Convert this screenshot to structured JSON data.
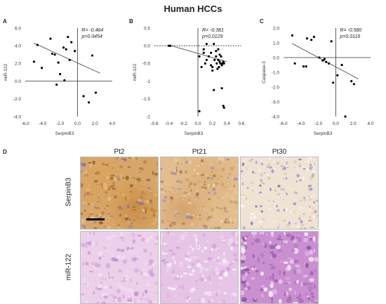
{
  "figure": {
    "title": "Human HCCs",
    "panel_letters": [
      "A",
      "B",
      "C",
      "D"
    ]
  },
  "colors": {
    "point": "#000000",
    "fit_line": "#555555",
    "axis": "#333333"
  },
  "chart_data": [
    {
      "type": "scatter",
      "panel": "A",
      "xlabel": "SerpinB3",
      "ylabel": "miR-122",
      "xlim": [
        -6.0,
        4.0
      ],
      "ylim": [
        -4.0,
        6.0
      ],
      "xticks": [
        "-6.0",
        "-4.0",
        "-2.0",
        "0.0",
        "2.0",
        "4.0"
      ],
      "xtick_values": [
        -6.0,
        -4.0,
        -2.0,
        0.0,
        2.0,
        4.0
      ],
      "yticks": [
        "-4.0",
        "-2.0",
        "0.0",
        "2.0",
        "4.0",
        "6.0"
      ],
      "ytick_values": [
        -4.0,
        -2.0,
        0.0,
        2.0,
        4.0,
        6.0
      ],
      "annotation": {
        "r_label": "R= -0.464",
        "p_label": "p=0.0454"
      },
      "fit": {
        "x": [
          -5.0,
          2.6
        ],
        "y": [
          4.3,
          0.9
        ]
      },
      "points": {
        "x": [
          -4.6,
          -5.0,
          -4.1,
          -3.1,
          -2.6,
          -2.9,
          -2.0,
          -1.6,
          -1.3,
          -1.1,
          -0.9,
          -0.7,
          -0.3,
          -2.2,
          -2.4,
          -1.5,
          0.7,
          1.3,
          1.7,
          2.1
        ],
        "y": [
          4.1,
          2.2,
          1.5,
          4.8,
          3.0,
          3.1,
          0.8,
          3.8,
          3.6,
          5.0,
          2.4,
          4.4,
          3.4,
          2.1,
          -0.4,
          0.1,
          -1.7,
          -2.4,
          2.9,
          -1.3
        ]
      }
    },
    {
      "type": "scatter",
      "panel": "B",
      "xlabel": "SerpinB3",
      "ylabel": "miR-122",
      "xlim": [
        -0.6,
        0.6
      ],
      "ylim": [
        -2.0,
        0.5
      ],
      "xticks": [
        "-0.6",
        "-0.4",
        "-0.2",
        "0.0",
        "0.2",
        "0.4",
        "0.6"
      ],
      "xtick_values": [
        -0.6,
        -0.4,
        -0.2,
        0.0,
        0.2,
        0.4,
        0.6
      ],
      "yticks": [
        "-2",
        "-1.5",
        "-1",
        "-0.5",
        "0.0",
        "0.5"
      ],
      "ytick_values": [
        -2.0,
        -1.5,
        -1.0,
        -0.5,
        0.0,
        0.5
      ],
      "annotation": {
        "r_label": "R= -0.381",
        "p_label": "p=0.0129"
      },
      "fit": {
        "x": [
          -0.4,
          0.4
        ],
        "y": [
          0.02,
          -0.45
        ]
      },
      "points": {
        "x": [
          -0.4,
          -0.38,
          0.02,
          0.05,
          0.08,
          0.1,
          0.12,
          0.15,
          0.18,
          0.2,
          0.22,
          0.23,
          0.25,
          0.26,
          0.27,
          0.28,
          0.3,
          0.31,
          0.32,
          0.33,
          0.34,
          0.35,
          0.36,
          0.3,
          0.28,
          0.22,
          0.18,
          0.12,
          0.08,
          0.35,
          0.33,
          0.2,
          0.36,
          0.02,
          0.25,
          0.29
        ],
        "y": [
          0.0,
          0.0,
          -0.3,
          -0.6,
          -0.1,
          -0.5,
          0.05,
          -0.3,
          -0.2,
          -0.6,
          0.05,
          -0.4,
          -0.3,
          -0.5,
          -0.65,
          -0.4,
          -0.45,
          -0.5,
          -0.3,
          -0.55,
          -0.5,
          -0.45,
          -0.5,
          -0.25,
          -0.1,
          -1.25,
          -0.55,
          -0.4,
          -0.2,
          -1.7,
          -1.2,
          -0.7,
          -1.75,
          -1.85,
          -0.15,
          -0.6
        ]
      }
    },
    {
      "type": "scatter",
      "panel": "C",
      "xlabel": "SerpinB3",
      "ylabel": "Caspase-3",
      "xlim": [
        -6.0,
        4.0
      ],
      "ylim": [
        -4.0,
        2.0
      ],
      "xticks": [
        "-6.0",
        "-4.0",
        "-2.0",
        "0.0",
        "2.0",
        "4.0"
      ],
      "xtick_values": [
        -6.0,
        -4.0,
        -2.0,
        0.0,
        2.0,
        4.0
      ],
      "yticks": [
        "-4.0",
        "-3.0",
        "-2.0",
        "-1.0",
        "0.0",
        "1.0",
        "2.0"
      ],
      "ytick_values": [
        -4.0,
        -3.0,
        -2.0,
        -1.0,
        0.0,
        1.0,
        2.0
      ],
      "annotation": {
        "r_label": "R= -0.580",
        "p_label": "p=0.0116"
      },
      "fit": {
        "x": [
          -5.0,
          2.6
        ],
        "y": [
          0.95,
          -1.45
        ]
      },
      "points": {
        "x": [
          -5.0,
          -4.7,
          -3.7,
          -3.3,
          -2.8,
          -2.5,
          -3.4,
          -1.9,
          -1.5,
          -1.3,
          -0.8,
          -0.5,
          -1.1,
          -0.3,
          0.2,
          0.7,
          1.1,
          1.8,
          2.1
        ],
        "y": [
          1.5,
          -0.4,
          -0.6,
          1.3,
          1.2,
          1.4,
          -0.6,
          0.0,
          -0.2,
          -0.1,
          -0.4,
          1.1,
          -0.3,
          -1.7,
          -1.2,
          -0.5,
          -4.0,
          -1.6,
          -1.8
        ]
      }
    }
  ],
  "histology": {
    "columns": [
      "Pt2",
      "Pt21",
      "Pt30"
    ],
    "rows": [
      "SerpinB3",
      "miR-122"
    ]
  }
}
